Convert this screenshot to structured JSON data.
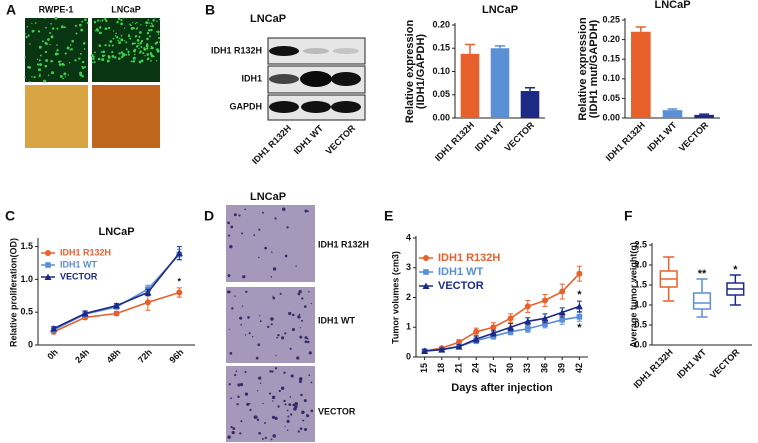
{
  "figure": {
    "panel_labels": [
      "A",
      "B",
      "C",
      "D",
      "E",
      "F"
    ],
    "panel_a": {
      "columns": [
        "RWPE-1",
        "LNCaP"
      ]
    },
    "panel_b": {
      "title": "LNCaP",
      "rows": [
        "IDH1 R132H",
        "IDH1",
        "GAPDH"
      ],
      "columns": [
        "IDH1 R132H",
        "IDH1 WT",
        "VECTOR"
      ]
    },
    "panel_d": {
      "title": "LNCaP",
      "rows": [
        "IDH1 R132H",
        "IDH1 WT",
        "VECTOR"
      ]
    }
  },
  "chart_data": [
    {
      "type": "bar",
      "title": "LNCaP",
      "ylabel": [
        "Relative expression",
        "(IDH1/GAPDH)"
      ],
      "categories": [
        "IDH1 R132H",
        "IDH1 WT",
        "VECTOR"
      ],
      "values": [
        0.138,
        0.15,
        0.058
      ],
      "errors": [
        0.02,
        0.005,
        0.007
      ],
      "colors": [
        "#e8602c",
        "#5b8fd6",
        "#1c2a86"
      ],
      "ylim": [
        0,
        0.2
      ],
      "yticks": [
        {
          "value": 0,
          "label": "0.00"
        },
        {
          "value": 0.05,
          "label": "0.05"
        },
        {
          "value": 0.1,
          "label": "0.10"
        },
        {
          "value": 0.15,
          "label": "0.15"
        },
        {
          "value": 0.2,
          "label": "0.20"
        }
      ]
    },
    {
      "type": "bar",
      "title": "LNCaP",
      "ylabel": [
        "Relative expression",
        "(IDH1 mut/GAPDH)"
      ],
      "categories": [
        "IDH1 R132H",
        "IDH1 WT",
        "VECTOR"
      ],
      "values": [
        0.22,
        0.02,
        0.008
      ],
      "errors": [
        0.012,
        0.003,
        0.002
      ],
      "colors": [
        "#e8602c",
        "#5b8fd6",
        "#1c2a86"
      ],
      "ylim": [
        0,
        0.25
      ],
      "yticks": [
        {
          "value": 0,
          "label": "0.00"
        },
        {
          "value": 0.05,
          "label": "0.05"
        },
        {
          "value": 0.1,
          "label": "0.10"
        },
        {
          "value": 0.15,
          "label": "0.15"
        },
        {
          "value": 0.2,
          "label": "0.20"
        },
        {
          "value": 0.25,
          "label": "0.25"
        }
      ]
    },
    {
      "type": "line",
      "title": "LNCaP",
      "ylabel": "Relative proliferation(OD)",
      "legend": "upper left",
      "categories": [
        "0h",
        "24h",
        "48h",
        "72h",
        "96h"
      ],
      "series": [
        {
          "name": "IDH1 R132H",
          "color": "#e8602c",
          "marker": "circle",
          "values": [
            0.2,
            0.42,
            0.48,
            0.65,
            0.8
          ],
          "errors": [
            0.03,
            0.03,
            0.03,
            0.12,
            0.07
          ],
          "annotation": "*"
        },
        {
          "name": "IDH1 WT",
          "color": "#5b8fd6",
          "marker": "square",
          "values": [
            0.23,
            0.47,
            0.58,
            0.85,
            1.38
          ],
          "errors": [
            0.03,
            0.04,
            0.03,
            0.06,
            0.08
          ]
        },
        {
          "name": "VECTOR",
          "color": "#1c2a86",
          "marker": "triangle",
          "values": [
            0.25,
            0.48,
            0.6,
            0.8,
            1.4
          ],
          "errors": [
            0.03,
            0.04,
            0.03,
            0.05,
            0.1
          ]
        }
      ],
      "ylim": [
        0,
        1.6
      ],
      "yticks": [
        0,
        0.5,
        {
          "value": 1,
          "label": "1.0"
        },
        {
          "value": 1.5,
          "label": "1.5"
        }
      ]
    },
    {
      "type": "line",
      "ylabel": "Tumor volumes (cm3)",
      "xlabel": "Days after injection",
      "legend": "upper left",
      "x": [
        15,
        18,
        21,
        24,
        27,
        30,
        33,
        36,
        39,
        42
      ],
      "series": [
        {
          "name": "IDH1 R132H",
          "color": "#e8602c",
          "marker": "circle",
          "values": [
            0.2,
            0.3,
            0.5,
            0.85,
            1.0,
            1.3,
            1.7,
            1.9,
            2.2,
            2.8
          ],
          "errors": [
            0.05,
            0.05,
            0.08,
            0.12,
            0.15,
            0.15,
            0.2,
            0.2,
            0.25,
            0.25
          ]
        },
        {
          "name": "IDH1 WT",
          "color": "#5b8fd6",
          "marker": "square",
          "values": [
            0.2,
            0.25,
            0.35,
            0.55,
            0.7,
            0.85,
            0.95,
            1.1,
            1.25,
            1.35
          ],
          "errors": [
            0.05,
            0.05,
            0.06,
            0.1,
            0.1,
            0.1,
            0.12,
            0.12,
            0.15,
            0.15
          ],
          "annotation": "*"
        },
        {
          "name": "VECTOR",
          "color": "#1c2a86",
          "marker": "triangle",
          "values": [
            0.2,
            0.25,
            0.35,
            0.6,
            0.8,
            1.0,
            1.2,
            1.3,
            1.5,
            1.7
          ],
          "errors": [
            0.05,
            0.05,
            0.06,
            0.1,
            0.1,
            0.12,
            0.12,
            0.15,
            0.15,
            0.18
          ],
          "annotation": "*"
        }
      ],
      "xlim": [
        13.5,
        43.5
      ],
      "xticks": [
        15,
        18,
        21,
        24,
        27,
        30,
        33,
        36,
        39,
        42
      ],
      "ylim": [
        0,
        4
      ],
      "yticks": [
        0,
        1,
        2,
        3,
        4
      ]
    },
    {
      "type": "box",
      "ylabel": "Average tumor weight(g)",
      "categories": [
        "IDH1 R132H",
        "IDH1 WT",
        "VECTOR"
      ],
      "values": [
        {
          "min": 1.1,
          "q1": 1.45,
          "median": 1.65,
          "q3": 1.85,
          "max": 2.2
        },
        {
          "min": 0.7,
          "q1": 0.9,
          "median": 1.05,
          "q3": 1.3,
          "max": 1.65
        },
        {
          "min": 1.0,
          "q1": 1.25,
          "median": 1.4,
          "q3": 1.55,
          "max": 1.75
        }
      ],
      "significance": [
        null,
        "**",
        "*"
      ],
      "colors": [
        "#e8602c",
        "#5b8fd6",
        "#1c2a86"
      ],
      "ylim": [
        0,
        2.5
      ],
      "yticks": [
        {
          "value": 0,
          "label": "0.0"
        },
        {
          "value": 0.5,
          "label": "0.5"
        },
        {
          "value": 1,
          "label": "1.0"
        },
        {
          "value": 1.5,
          "label": "1.5"
        },
        {
          "value": 2,
          "label": "2.0"
        },
        {
          "value": 2.5,
          "label": "2.5"
        }
      ]
    }
  ]
}
